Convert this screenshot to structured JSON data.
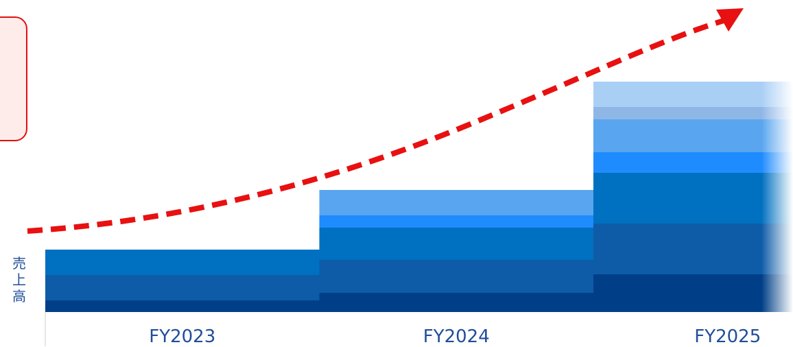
{
  "chart_data": {
    "type": "bar",
    "stacked": true,
    "ylabel": "売上高",
    "categories": [
      "FY2023",
      "FY2024",
      "FY2025"
    ],
    "series_colors": [
      "#003f87",
      "#0e5ca8",
      "#0070c0",
      "#1e8bff",
      "#59a5ef",
      "#8fb7e6",
      "#aacff5"
    ],
    "segments": [
      [
        17,
        37,
        37,
        0,
        0,
        0,
        0
      ],
      [
        28,
        48,
        47,
        18,
        37,
        0,
        0
      ],
      [
        55,
        74,
        74,
        30,
        48,
        18,
        37
      ]
    ],
    "ylim": [
      0,
      340
    ],
    "trend_arrow": {
      "type": "dashed-curve",
      "color": "#e81010"
    },
    "grid": false,
    "legend": "none"
  },
  "annotation": {
    "color": "#e01010",
    "fill": "#fdecea"
  }
}
